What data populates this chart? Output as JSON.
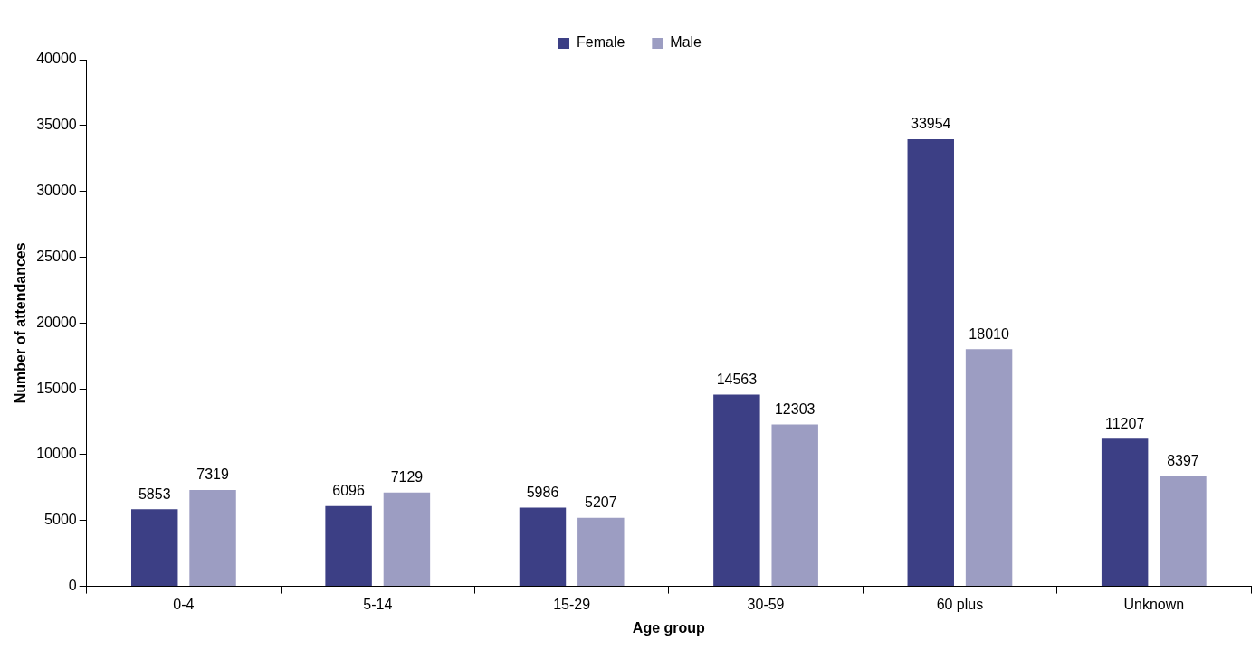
{
  "chart_data": {
    "type": "bar",
    "xlabel": "Age group",
    "ylabel": "Number of attendances",
    "categories": [
      "0-4",
      "5-14",
      "15-29",
      "30-59",
      "60 plus",
      "Unknown"
    ],
    "series": [
      {
        "name": "Female",
        "color": "#3c3f85",
        "values": [
          5853,
          6096,
          5986,
          14563,
          33954,
          11207
        ]
      },
      {
        "name": "Male",
        "color": "#9c9dc2",
        "values": [
          7319,
          7129,
          5207,
          12303,
          18010,
          8397
        ]
      }
    ],
    "ylim": [
      0,
      40000
    ],
    "yticks": [
      0,
      5000,
      10000,
      15000,
      20000,
      25000,
      30000,
      35000,
      40000
    ],
    "grid": false,
    "legend": "top",
    "data_labels": true
  }
}
